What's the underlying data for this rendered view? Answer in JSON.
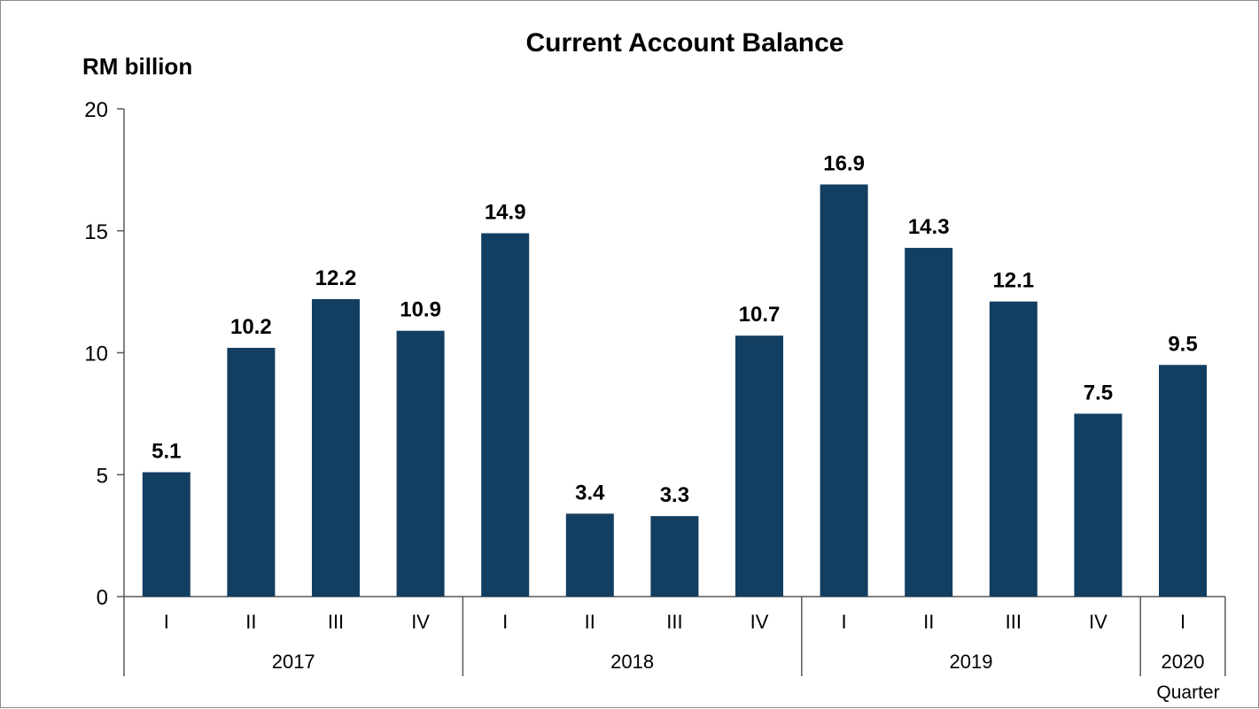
{
  "chart_data": {
    "type": "bar",
    "title": "Current Account Balance",
    "ylabel": "RM billion",
    "xlabel": "Quarter",
    "ylim": [
      0,
      20
    ],
    "yticks": [
      0,
      5,
      10,
      15,
      20
    ],
    "grid": false,
    "bar_color": "#123e61",
    "categories": [
      "I",
      "II",
      "III",
      "IV",
      "I",
      "II",
      "III",
      "IV",
      "I",
      "II",
      "III",
      "IV",
      "I"
    ],
    "values": [
      5.1,
      10.2,
      12.2,
      10.9,
      14.9,
      3.4,
      3.3,
      10.7,
      16.9,
      14.3,
      12.1,
      7.5,
      9.5
    ],
    "data_labels": [
      "5.1",
      "10.2",
      "12.2",
      "10.9",
      "14.9",
      "3.4",
      "3.3",
      "10.7",
      "16.9",
      "14.3",
      "12.1",
      "7.5",
      "9.5"
    ],
    "groups": [
      {
        "label": "2017",
        "count": 4
      },
      {
        "label": "2018",
        "count": 4
      },
      {
        "label": "2019",
        "count": 4
      },
      {
        "label": "2020",
        "count": 1
      }
    ]
  }
}
